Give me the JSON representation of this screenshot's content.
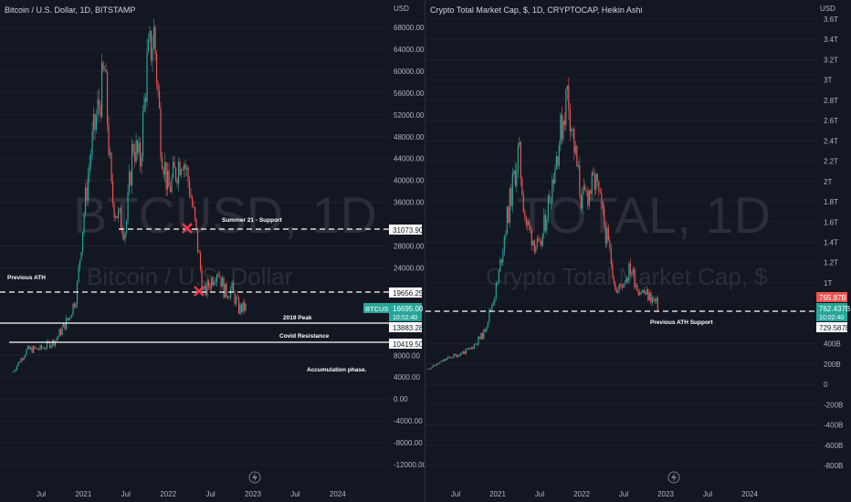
{
  "left": {
    "title": "Bitcoin / U.S. Dollar, 1D, BITSTAMP",
    "currency": "USD",
    "watermark": "BTCUSD, 1D",
    "watermark_sub": "Bitcoin / U.S. Dollar",
    "yticks": [
      "68000.00",
      "64000.00",
      "60000.00",
      "56000.00",
      "52000.00",
      "48000.00",
      "44000.00",
      "40000.00",
      "36000.00",
      "28000.00",
      "24000.00",
      "8000.00",
      "4000.00",
      "0.00",
      "-4000.00",
      "-8000.00",
      "-12000.00"
    ],
    "xticks": [
      "Jul",
      "2021",
      "Jul",
      "2022",
      "Jul",
      "2023",
      "Jul",
      "2024"
    ],
    "annotations": {
      "summer": "Summer 21 - Support",
      "prev_ath": "Previous ATH",
      "peak2019": "2019 Peak",
      "covid": "Covid Resistance",
      "accum": "Accumulation phase."
    },
    "price_tags": {
      "l1": "31073.90",
      "l2": "19656.25",
      "symbol": "BTCUSD",
      "last": "16695.00",
      "countdown": "10:02:40",
      "l3": "13883.28",
      "l4": "10419.50"
    }
  },
  "right": {
    "title": "Crypto Total Market Cap, $, 1D, CRYPTOCAP, Heikin Ashi",
    "currency": "USD",
    "watermark": "TOTAL, 1D",
    "watermark_sub": "Crypto Total Market Cap, $",
    "yticks": [
      "3.6T",
      "3.4T",
      "3.2T",
      "3T",
      "2.8T",
      "2.6T",
      "2.4T",
      "2.2T",
      "2T",
      "1.8T",
      "1.6T",
      "1.4T",
      "1.2T",
      "1T",
      "400B",
      "200B",
      "0",
      "-200B",
      "-400B",
      "-600B",
      "-800B"
    ],
    "xticks": [
      "Jul",
      "2021",
      "Jul",
      "2022",
      "Jul",
      "2023",
      "Jul",
      "2024"
    ],
    "annotations": {
      "prev_ath_support": "Previous ATH Support"
    },
    "price_tags": {
      "red": "765.87B",
      "last": "762.437B",
      "countdown": "10:02:40",
      "support": "729.587B"
    }
  },
  "colors": {
    "up": "#26a69a",
    "down": "#ef5350",
    "bg": "#131722",
    "grid": "#1e222d",
    "text": "#b2b5be",
    "marker": "#f23645"
  },
  "chart_data": [
    {
      "type": "candlestick",
      "title": "Bitcoin / U.S. Dollar, 1D, BITSTAMP",
      "ylabel": "USD",
      "ylim": [
        -12000,
        70000
      ],
      "x_ticks": [
        "Jul",
        "2021",
        "Jul",
        "2022",
        "Jul",
        "2023",
        "Jul",
        "2024"
      ],
      "series": [
        {
          "values": [
            {
              "d": "2020-03",
              "v": 5000
            },
            {
              "d": "2020-05",
              "v": 9000
            },
            {
              "d": "2020-07",
              "v": 9200
            },
            {
              "d": "2020-09",
              "v": 10700
            },
            {
              "d": "2020-11",
              "v": 15000
            },
            {
              "d": "2020-12",
              "v": 19000
            },
            {
              "d": "2021-01",
              "v": 33000
            },
            {
              "d": "2021-02",
              "v": 45000
            },
            {
              "d": "2021-04",
              "v": 60000
            },
            {
              "d": "2021-05",
              "v": 37000
            },
            {
              "d": "2021-06",
              "v": 33000
            },
            {
              "d": "2021-07",
              "v": 31000
            },
            {
              "d": "2021-08",
              "v": 47000
            },
            {
              "d": "2021-09",
              "v": 43000
            },
            {
              "d": "2021-10",
              "v": 61000
            },
            {
              "d": "2021-11",
              "v": 67000
            },
            {
              "d": "2021-12",
              "v": 47000
            },
            {
              "d": "2022-01",
              "v": 38000
            },
            {
              "d": "2022-03",
              "v": 45000
            },
            {
              "d": "2022-04",
              "v": 39000
            },
            {
              "d": "2022-05",
              "v": 30000
            },
            {
              "d": "2022-06",
              "v": 19000
            },
            {
              "d": "2022-08",
              "v": 24000
            },
            {
              "d": "2022-09",
              "v": 19500
            },
            {
              "d": "2022-10",
              "v": 20000
            },
            {
              "d": "2022-11",
              "v": 16500
            },
            {
              "d": "2022-12",
              "v": 16695
            }
          ]
        }
      ],
      "horizontal_levels": [
        31073.9,
        19656.25,
        13883.28,
        10419.5
      ]
    },
    {
      "type": "candlestick",
      "title": "Crypto Total Market Cap, $, 1D, CRYPTOCAP, Heikin Ashi",
      "ylabel": "USD",
      "ylim": [
        -800,
        3700
      ],
      "units": "billions",
      "x_ticks": [
        "Jul",
        "2021",
        "Jul",
        "2022",
        "Jul",
        "2023",
        "Jul",
        "2024"
      ],
      "series": [
        {
          "values": [
            {
              "d": "2020-03",
              "v": 150
            },
            {
              "d": "2020-06",
              "v": 260
            },
            {
              "d": "2020-09",
              "v": 340
            },
            {
              "d": "2020-11",
              "v": 500
            },
            {
              "d": "2021-01",
              "v": 1000
            },
            {
              "d": "2021-02",
              "v": 1500
            },
            {
              "d": "2021-04",
              "v": 2300
            },
            {
              "d": "2021-05",
              "v": 1600
            },
            {
              "d": "2021-07",
              "v": 1300
            },
            {
              "d": "2021-09",
              "v": 2100
            },
            {
              "d": "2021-11",
              "v": 2900
            },
            {
              "d": "2021-12",
              "v": 2300
            },
            {
              "d": "2022-01",
              "v": 1800
            },
            {
              "d": "2022-03",
              "v": 2000
            },
            {
              "d": "2022-05",
              "v": 1300
            },
            {
              "d": "2022-06",
              "v": 900
            },
            {
              "d": "2022-08",
              "v": 1150
            },
            {
              "d": "2022-09",
              "v": 950
            },
            {
              "d": "2022-11",
              "v": 850
            },
            {
              "d": "2022-12",
              "v": 762.437
            }
          ]
        }
      ],
      "horizontal_levels": [
        729.587
      ]
    }
  ]
}
